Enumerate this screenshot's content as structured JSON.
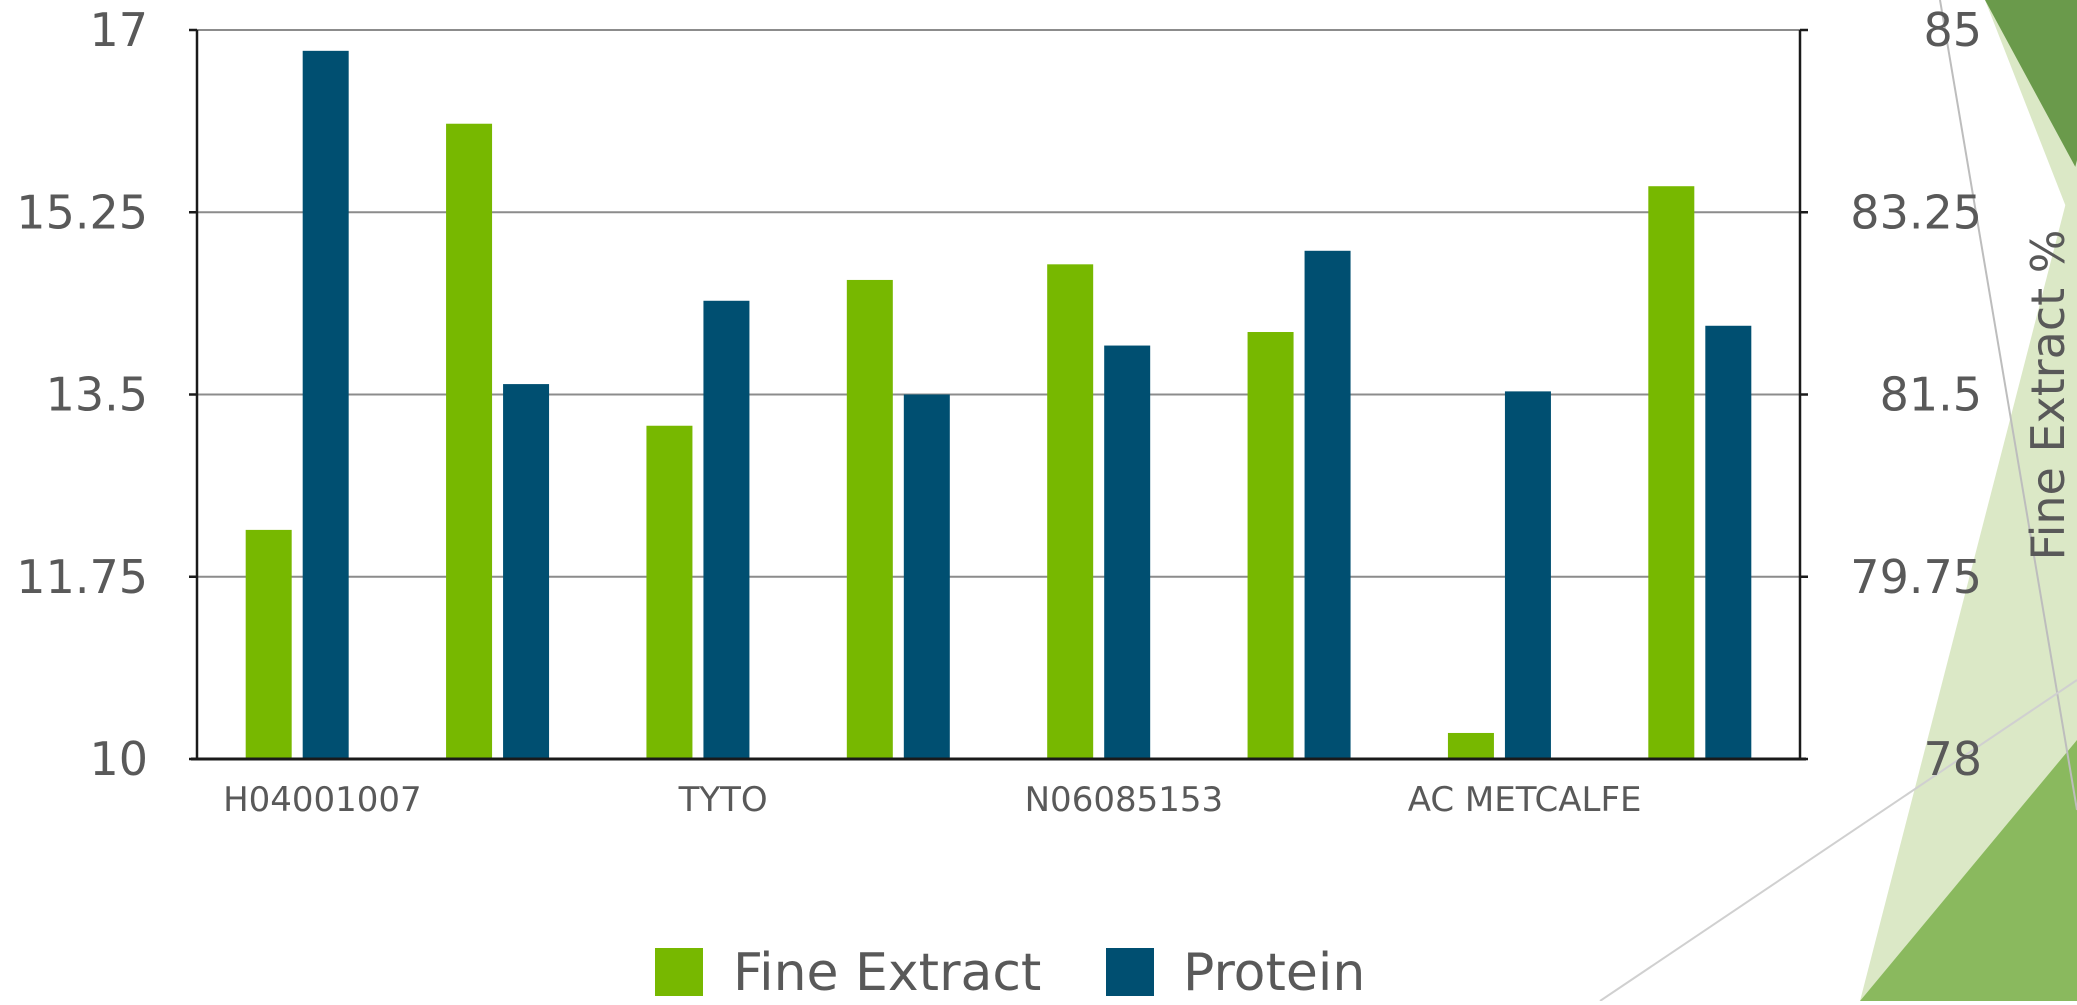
{
  "chart_data": {
    "type": "bar",
    "categories": [
      "H04001007",
      "",
      "TYTO",
      "",
      "N06085153",
      "",
      "AC METCALFE",
      ""
    ],
    "series": [
      {
        "name": "Fine Extract",
        "axis": "right",
        "color": "#77b800",
        "values": [
          80.2,
          84.1,
          81.2,
          82.6,
          82.75,
          82.1,
          78.25,
          83.5
        ]
      },
      {
        "name": "Protein",
        "axis": "left",
        "color": "#004f71",
        "values": [
          16.8,
          13.6,
          14.4,
          13.5,
          13.97,
          14.88,
          13.53,
          14.16
        ]
      }
    ],
    "left_axis": {
      "ylim": [
        10,
        17
      ],
      "ticks": [
        "10",
        "11.75",
        "13.5",
        "15.25",
        "17"
      ]
    },
    "right_axis": {
      "label": "Fine Extract %",
      "ylim": [
        78,
        85
      ],
      "ticks": [
        "78",
        "79.75",
        "81.5",
        "83.25",
        "85"
      ]
    },
    "grid": true,
    "legend_position": "bottom",
    "colors": {
      "fine_extract": "#77b800",
      "protein": "#004f71",
      "axis": "#1a1a1a",
      "grid": "#8c8c8c",
      "text": "#595959",
      "deco_dark": "#6a9a4b",
      "deco_mid": "#8ab95e",
      "deco_light": "#dbe8c6"
    }
  }
}
